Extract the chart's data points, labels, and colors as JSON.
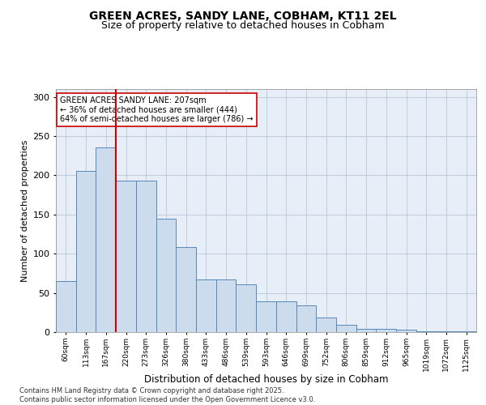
{
  "title1": "GREEN ACRES, SANDY LANE, COBHAM, KT11 2EL",
  "title2": "Size of property relative to detached houses in Cobham",
  "xlabel": "Distribution of detached houses by size in Cobham",
  "ylabel": "Number of detached properties",
  "bins": [
    "60sqm",
    "113sqm",
    "167sqm",
    "220sqm",
    "273sqm",
    "326sqm",
    "380sqm",
    "433sqm",
    "486sqm",
    "539sqm",
    "593sqm",
    "646sqm",
    "699sqm",
    "752sqm",
    "806sqm",
    "859sqm",
    "912sqm",
    "965sqm",
    "1019sqm",
    "1072sqm",
    "1125sqm"
  ],
  "bar_heights": [
    65,
    206,
    236,
    193,
    193,
    145,
    109,
    67,
    67,
    61,
    39,
    39,
    34,
    19,
    9,
    4,
    4,
    3,
    1,
    1,
    1
  ],
  "property_line_x": 3,
  "bar_color": "#ccdcec",
  "bar_edge_color": "#5588bb",
  "line_color": "#cc0000",
  "bg_color": "#e8eef8",
  "annotation_line1": "GREEN ACRES SANDY LANE: 207sqm",
  "annotation_line2": "← 36% of detached houses are smaller (444)",
  "annotation_line3": "64% of semi-detached houses are larger (786) →",
  "annotation_box_color": "#ffffff",
  "annotation_border_color": "#cc0000",
  "footer_text": "Contains HM Land Registry data © Crown copyright and database right 2025.\nContains public sector information licensed under the Open Government Licence v3.0.",
  "ylim": [
    0,
    310
  ],
  "yticks": [
    0,
    50,
    100,
    150,
    200,
    250,
    300
  ]
}
